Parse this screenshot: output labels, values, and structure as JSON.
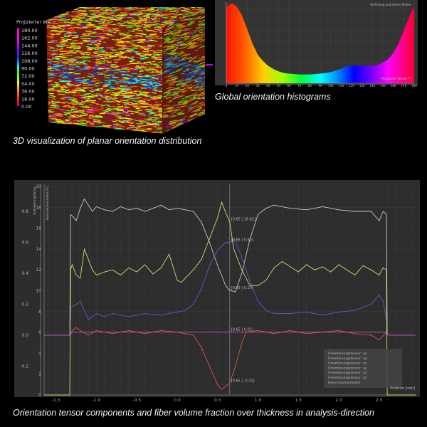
{
  "captions": {
    "volume": "3D visualization of planar orientation distribution",
    "histogram": "Global orientation histograms",
    "profile": "Orientation tensor components and fiber volume fraction over thickness in analysis-direction"
  },
  "colorbar": {
    "title": "Projizierter Winkel [°]",
    "ticks": [
      "180.00",
      "162.00",
      "144.00",
      "126.00",
      "108.00",
      "90.00",
      "72.00",
      "54.00",
      "36.00",
      "18.00",
      "0.00"
    ]
  },
  "chart_data": [
    {
      "type": "area",
      "title": "Verteilung projizierter Winkel",
      "xlabel": "Projizierter Winkel [°]",
      "ylabel": "",
      "xlim": [
        0,
        180
      ],
      "x_ticks": [
        "0",
        "10",
        "20",
        "30",
        "40",
        "50",
        "60",
        "70",
        "80",
        "90",
        "100",
        "110",
        "120",
        "130",
        "140",
        "150",
        "160",
        "170",
        "180"
      ],
      "fill": "hue gradient matching colorbar",
      "grid": true,
      "x": [
        0,
        3,
        6,
        10,
        15,
        20,
        25,
        30,
        35,
        40,
        45,
        50,
        55,
        60,
        65,
        70,
        75,
        80,
        85,
        90,
        95,
        100,
        105,
        110,
        115,
        120,
        125,
        130,
        135,
        140,
        145,
        150,
        155,
        160,
        165,
        170,
        175,
        178,
        180
      ],
      "values": [
        0.95,
        0.99,
        1.0,
        0.96,
        0.85,
        0.68,
        0.5,
        0.36,
        0.28,
        0.22,
        0.18,
        0.15,
        0.13,
        0.12,
        0.115,
        0.11,
        0.11,
        0.11,
        0.115,
        0.12,
        0.13,
        0.14,
        0.16,
        0.18,
        0.21,
        0.22,
        0.22,
        0.22,
        0.22,
        0.22,
        0.23,
        0.26,
        0.3,
        0.38,
        0.5,
        0.66,
        0.82,
        0.92,
        0.94
      ]
    },
    {
      "type": "line",
      "xlabel": "Position [mm]",
      "ylabel_left": "Orientierungstensor",
      "ylabel_right": "Faservolumenanteil [%]",
      "xlim": [
        -1.65,
        2.95
      ],
      "ylim_left": [
        -0.386,
        0.96
      ],
      "ylim_right": [
        0,
        20
      ],
      "x_ticks": [
        "-1.5",
        "-1.0",
        "-0.5",
        "0.0",
        "0.5",
        "1.0",
        "1.5",
        "2.0",
        "2.5"
      ],
      "y_ticks_left": [
        "0.8",
        "0.6",
        "0.4",
        "0.2",
        "0.0",
        "-0.2"
      ],
      "y_ticks_right": [
        "20",
        "18",
        "16",
        "14",
        "12",
        "10",
        "8",
        "6",
        "4",
        "2",
        "0"
      ],
      "grid": true,
      "legend_position": "bottom-right",
      "cursor_x": 0.65,
      "series": [
        {
          "name": "Orientierungstensor: xx",
          "color": "#c8c8c8",
          "axis": "left",
          "points": [
            [
              -1.33,
              0
            ],
            [
              -1.32,
              0.78
            ],
            [
              -1.28,
              0.76
            ],
            [
              -1.25,
              0.74
            ],
            [
              -1.2,
              0.82
            ],
            [
              -1.15,
              0.88
            ],
            [
              -1.1,
              0.84
            ],
            [
              -1.05,
              0.8
            ],
            [
              -1.0,
              0.83
            ],
            [
              -0.9,
              0.81
            ],
            [
              -0.8,
              0.8
            ],
            [
              -0.7,
              0.83
            ],
            [
              -0.6,
              0.81
            ],
            [
              -0.5,
              0.82
            ],
            [
              -0.4,
              0.8
            ],
            [
              -0.3,
              0.82
            ],
            [
              -0.2,
              0.84
            ],
            [
              -0.1,
              0.81
            ],
            [
              0.0,
              0.82
            ],
            [
              0.1,
              0.81
            ],
            [
              0.2,
              0.8
            ],
            [
              0.3,
              0.73
            ],
            [
              0.4,
              0.6
            ],
            [
              0.5,
              0.45
            ],
            [
              0.6,
              0.32
            ],
            [
              0.65,
              0.29
            ],
            [
              0.72,
              0.28
            ],
            [
              0.8,
              0.4
            ],
            [
              0.9,
              0.62
            ],
            [
              1.0,
              0.78
            ],
            [
              1.1,
              0.82
            ],
            [
              1.2,
              0.84
            ],
            [
              1.4,
              0.82
            ],
            [
              1.6,
              0.81
            ],
            [
              1.8,
              0.83
            ],
            [
              2.0,
              0.81
            ],
            [
              2.2,
              0.8
            ],
            [
              2.4,
              0.8
            ],
            [
              2.5,
              0.74
            ],
            [
              2.55,
              0.8
            ],
            [
              2.59,
              0.78
            ],
            [
              2.6,
              0
            ]
          ]
        },
        {
          "name": "Orientierungstensor: xy",
          "color": "#d9544d",
          "axis": "left",
          "points": [
            [
              -1.32,
              0.02
            ],
            [
              -1.25,
              0.05
            ],
            [
              -1.2,
              0.03
            ],
            [
              -1.1,
              0.0
            ],
            [
              -1.0,
              0.03
            ],
            [
              -0.8,
              0.01
            ],
            [
              -0.6,
              0.03
            ],
            [
              -0.4,
              0.01
            ],
            [
              -0.2,
              0.03
            ],
            [
              0.0,
              0.02
            ],
            [
              0.2,
              0.0
            ],
            [
              0.3,
              -0.08
            ],
            [
              0.4,
              -0.2
            ],
            [
              0.5,
              -0.32
            ],
            [
              0.55,
              -0.35
            ],
            [
              0.65,
              -0.31
            ],
            [
              0.72,
              -0.2
            ],
            [
              0.8,
              -0.05
            ],
            [
              0.85,
              0.02
            ],
            [
              1.0,
              0.03
            ],
            [
              1.2,
              0.01
            ],
            [
              1.4,
              0.03
            ],
            [
              1.6,
              0.01
            ],
            [
              1.8,
              0.02
            ],
            [
              2.0,
              0.03
            ],
            [
              2.2,
              0.01
            ],
            [
              2.4,
              0.0
            ],
            [
              2.5,
              -0.03
            ],
            [
              2.59,
              0.02
            ]
          ]
        },
        {
          "name": "Orientierungstensor: xz",
          "color": "#9a9a9a",
          "axis": "left",
          "points": []
        },
        {
          "name": "Orientierungstensor: yy",
          "color": "#5a5ad0",
          "axis": "left",
          "points": [
            [
              -1.33,
              0
            ],
            [
              -1.32,
              0.18
            ],
            [
              -1.25,
              0.2
            ],
            [
              -1.2,
              0.22
            ],
            [
              -1.15,
              0.16
            ],
            [
              -1.1,
              0.1
            ],
            [
              -1.05,
              0.12
            ],
            [
              -1.0,
              0.14
            ],
            [
              -0.9,
              0.12
            ],
            [
              -0.8,
              0.14
            ],
            [
              -0.6,
              0.12
            ],
            [
              -0.4,
              0.14
            ],
            [
              -0.2,
              0.13
            ],
            [
              0.0,
              0.15
            ],
            [
              0.1,
              0.16
            ],
            [
              0.2,
              0.2
            ],
            [
              0.3,
              0.3
            ],
            [
              0.4,
              0.45
            ],
            [
              0.5,
              0.55
            ],
            [
              0.6,
              0.6
            ],
            [
              0.65,
              0.6
            ],
            [
              0.72,
              0.61
            ],
            [
              0.8,
              0.5
            ],
            [
              0.9,
              0.35
            ],
            [
              1.0,
              0.22
            ],
            [
              1.1,
              0.16
            ],
            [
              1.2,
              0.14
            ],
            [
              1.4,
              0.14
            ],
            [
              1.6,
              0.15
            ],
            [
              1.8,
              0.13
            ],
            [
              2.0,
              0.15
            ],
            [
              2.2,
              0.16
            ],
            [
              2.4,
              0.2
            ],
            [
              2.5,
              0.26
            ],
            [
              2.55,
              0.22
            ],
            [
              2.59,
              0.1
            ]
          ]
        },
        {
          "name": "Orientierungstensor: yz",
          "color": "#9a9a9a",
          "axis": "left",
          "points": []
        },
        {
          "name": "Orientierungstensor: zz",
          "color": "#c050c0",
          "axis": "left",
          "points": [
            [
              -1.65,
              0.0
            ],
            [
              -1.33,
              0.0
            ],
            [
              -1.3,
              0.02
            ],
            [
              0.0,
              0.02
            ],
            [
              0.65,
              0.02
            ],
            [
              1.5,
              0.02
            ],
            [
              2.59,
              0.02
            ],
            [
              2.62,
              0.0
            ],
            [
              2.95,
              0.0
            ]
          ]
        },
        {
          "name": "Faservolumenanteil",
          "color": "#d8d870",
          "axis": "right",
          "points": [
            [
              -1.65,
              0
            ],
            [
              -1.33,
              0
            ],
            [
              -1.32,
              12
            ],
            [
              -1.3,
              12.5
            ],
            [
              -1.25,
              11.5
            ],
            [
              -1.2,
              11.2
            ],
            [
              -1.15,
              14
            ],
            [
              -1.1,
              13
            ],
            [
              -1.05,
              12
            ],
            [
              -1.0,
              11.5
            ],
            [
              -0.9,
              11.8
            ],
            [
              -0.8,
              12
            ],
            [
              -0.7,
              11.5
            ],
            [
              -0.6,
              12.2
            ],
            [
              -0.5,
              11.8
            ],
            [
              -0.4,
              12.5
            ],
            [
              -0.3,
              11.6
            ],
            [
              -0.2,
              12.2
            ],
            [
              -0.1,
              13.5
            ],
            [
              0.0,
              11
            ],
            [
              0.05,
              10.8
            ],
            [
              0.1,
              11.2
            ],
            [
              0.2,
              12
            ],
            [
              0.3,
              13
            ],
            [
              0.4,
              15
            ],
            [
              0.5,
              17
            ],
            [
              0.55,
              18.5
            ],
            [
              0.6,
              17.5
            ],
            [
              0.65,
              16.62
            ],
            [
              0.7,
              14
            ],
            [
              0.8,
              12
            ],
            [
              0.9,
              10.5
            ],
            [
              1.0,
              10.5
            ],
            [
              1.1,
              11
            ],
            [
              1.2,
              12.2
            ],
            [
              1.3,
              12.8
            ],
            [
              1.4,
              12.3
            ],
            [
              1.5,
              11.8
            ],
            [
              1.6,
              12.5
            ],
            [
              1.7,
              12
            ],
            [
              1.8,
              12.3
            ],
            [
              1.9,
              11.8
            ],
            [
              2.0,
              12.5
            ],
            [
              2.1,
              12
            ],
            [
              2.2,
              11.5
            ],
            [
              2.3,
              12.4
            ],
            [
              2.4,
              12
            ],
            [
              2.5,
              11.5
            ],
            [
              2.55,
              12.2
            ],
            [
              2.59,
              12
            ],
            [
              2.6,
              0
            ],
            [
              2.95,
              0
            ]
          ]
        }
      ],
      "annotations": [
        {
          "text": "[0.65 | 16.62]",
          "color": "#d8d870",
          "axis": "right",
          "y": 16.62
        },
        {
          "text": "[0.65 | 0.60]",
          "color": "#5a5ad0",
          "axis": "left",
          "y": 0.6
        },
        {
          "text": "[0.65 | 0.29]",
          "color": "#b0b0b0",
          "axis": "left",
          "y": 0.29
        },
        {
          "text": "[0.65 | 0.02]",
          "color": "#c050c0",
          "axis": "left",
          "y": 0.02
        },
        {
          "text": "[0.65 | -0.31]",
          "color": "#d9544d",
          "axis": "left",
          "y": -0.31
        }
      ]
    }
  ]
}
